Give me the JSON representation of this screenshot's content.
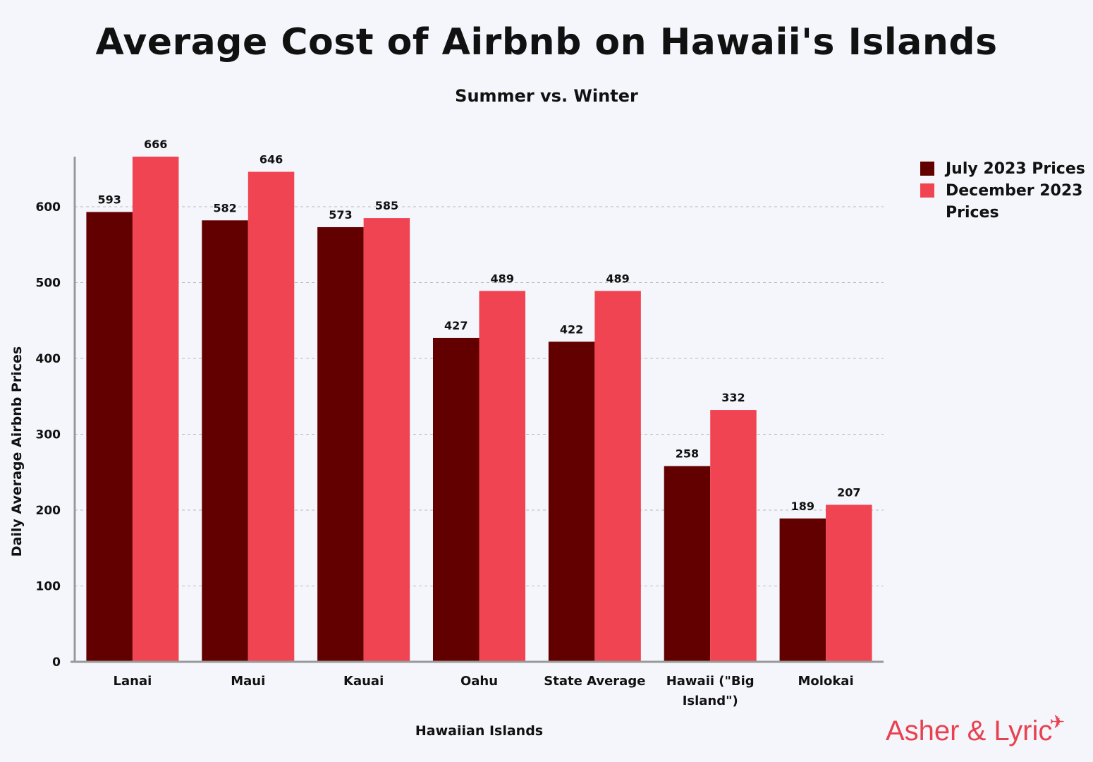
{
  "colors": {
    "july": "#620000",
    "december": "#f04452",
    "brand": "#e8414f",
    "grid": "#bbbbbb",
    "axis": "#999999"
  },
  "legend": {
    "items": [
      {
        "label": "July 2023 Prices",
        "color": "#620000"
      },
      {
        "label": "December 2023 Prices",
        "color": "#f04452"
      }
    ],
    "placement": "top-right"
  },
  "brand": {
    "text": "Asher & Lyric",
    "icon": "airplane-icon"
  },
  "chart_data": {
    "type": "bar",
    "title": "Average Cost of Airbnb on Hawaii's Islands",
    "subtitle": "Summer vs. Winter",
    "xlabel": "Hawaiian Islands",
    "ylabel": "Daily Average Airbnb Prices",
    "categories": [
      "Lanai",
      "Maui",
      "Kauai",
      "Oahu",
      "State Average",
      "Hawaii (\"Big Island\")",
      "Molokai"
    ],
    "series": [
      {
        "name": "July 2023 Prices",
        "values": [
          593,
          582,
          573,
          427,
          422,
          258,
          189
        ]
      },
      {
        "name": "December 2023 Prices",
        "values": [
          666,
          646,
          585,
          489,
          489,
          332,
          207
        ]
      }
    ],
    "ylim": [
      0,
      666
    ],
    "yticks": [
      0,
      100,
      200,
      300,
      400,
      500,
      600
    ],
    "grid": true,
    "grid_style": "dashed-horizontal",
    "data_labels": true
  }
}
